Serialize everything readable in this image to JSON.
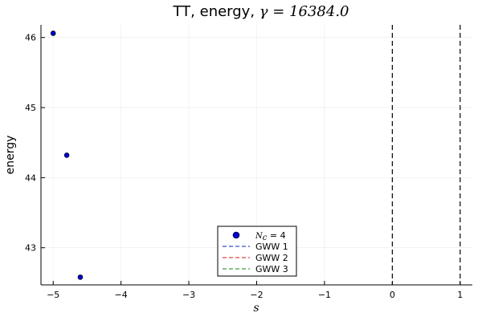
{
  "chart_data": {
    "type": "scatter",
    "title_prefix": "TT, energy, ",
    "title_math": "γ = 16384.0",
    "xlabel": "s",
    "ylabel": "energy",
    "xlim": [
      -5.18,
      1.18
    ],
    "ylim": [
      42.47,
      46.18
    ],
    "xticks": [
      -5,
      -4,
      -3,
      -2,
      -1,
      0,
      1
    ],
    "xtick_labels": [
      "−5",
      "−4",
      "−3",
      "−2",
      "−1",
      "0",
      "1"
    ],
    "yticks": [
      43,
      44,
      45,
      46
    ],
    "ytick_labels": [
      "43",
      "44",
      "45",
      "46"
    ],
    "grid": true,
    "legend_position": "bottom-center",
    "series": [
      {
        "name_math": "N",
        "name_sub": "c",
        "name_suffix": " = 4",
        "kind": "scatter",
        "color": "#0000cc",
        "points": [
          {
            "x": -5.0,
            "y": 46.06
          },
          {
            "x": -4.8,
            "y": 44.32
          },
          {
            "x": -4.6,
            "y": 42.58
          }
        ]
      },
      {
        "name": "GWW 1",
        "kind": "vline",
        "color": "#5a6bd4",
        "x": null
      },
      {
        "name": "GWW 2",
        "kind": "vline",
        "color": "#e8625c",
        "x": null
      },
      {
        "name": "GWW 3",
        "kind": "vline",
        "color": "#5fae5f",
        "x": null
      }
    ],
    "vlines": [
      {
        "x": 0,
        "color": "#000000"
      },
      {
        "x": 1,
        "color": "#000000"
      }
    ]
  }
}
